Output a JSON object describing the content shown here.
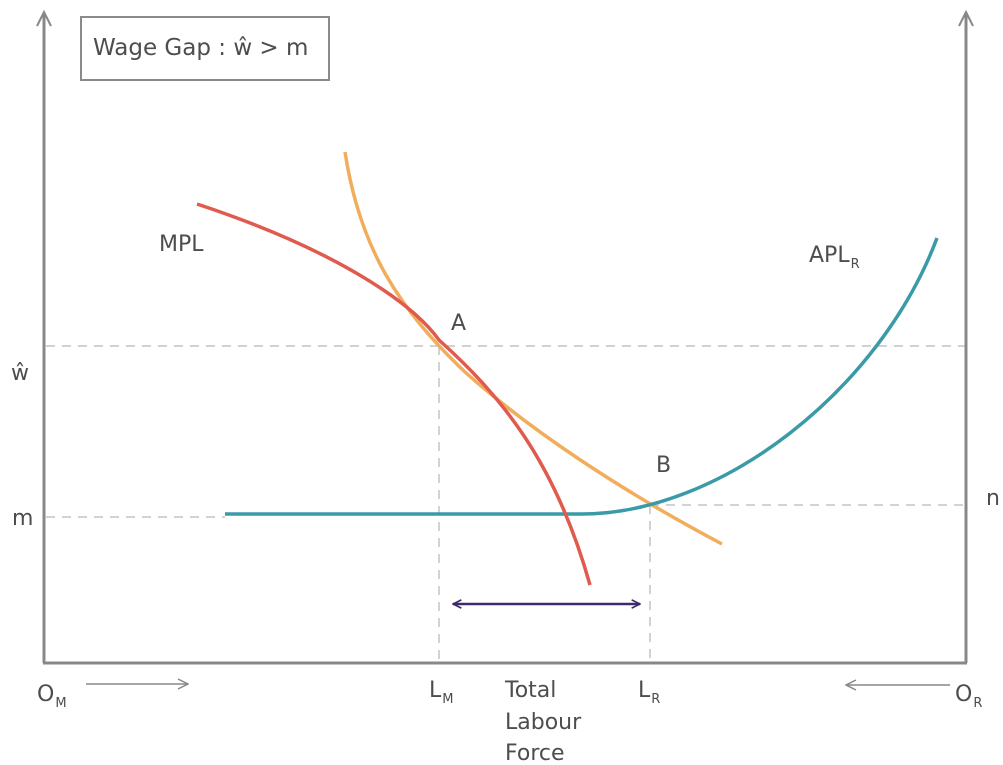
{
  "title": "Wage Gap : ŵ > m",
  "labels": {
    "mpl": "MPL",
    "apl": "APL",
    "apl_sub": "R",
    "point_a": "A",
    "point_b": "B",
    "w_hat": "ŵ",
    "m": "m",
    "n": "n",
    "om": "O",
    "om_sub": "M",
    "or": "O",
    "or_sub": "R",
    "lm": "L",
    "lm_sub": "M",
    "lr": "L",
    "lr_sub": "R",
    "total_line1": "Total",
    "total_line2": "Labour",
    "total_line3": "Force"
  },
  "colors": {
    "mpl": "#e05a4d",
    "apl_orange": "#f2ad5c",
    "apl_r": "#3a9aa8",
    "axis": "#888888",
    "dashed": "#c4c4c4",
    "arrow": "#3e2a6b",
    "text": "#4d4d4d"
  }
}
